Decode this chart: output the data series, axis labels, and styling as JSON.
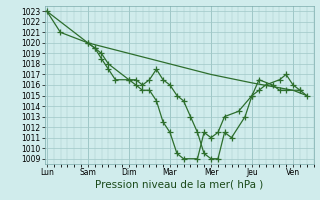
{
  "background_color": "#d0ecec",
  "grid_color": "#a0c8c8",
  "line_color": "#2d6e2d",
  "marker": "+",
  "xlabel": "Pression niveau de la mer( hPa )",
  "ylim": [
    1008.5,
    1023.5
  ],
  "yticks": [
    1009,
    1010,
    1011,
    1012,
    1013,
    1014,
    1015,
    1016,
    1017,
    1018,
    1019,
    1020,
    1021,
    1022,
    1023
  ],
  "x_labels": [
    "Lun",
    "Sam",
    "Dim",
    "Mar",
    "Mer",
    "Jeu",
    "Ven"
  ],
  "x_positions": [
    0,
    1,
    2,
    3,
    4,
    5,
    6
  ],
  "xlim": [
    -0.05,
    6.5
  ],
  "line1_x": [
    0.0,
    0.33,
    1.0,
    1.17,
    1.33,
    1.5,
    2.0,
    2.17,
    2.33,
    2.5,
    2.67,
    2.83,
    3.0,
    3.17,
    3.33,
    3.5,
    3.67,
    3.83,
    4.0,
    4.17,
    4.33,
    4.5,
    4.83,
    5.0,
    5.17,
    5.33,
    5.67,
    5.83,
    6.0,
    6.17
  ],
  "line1_y": [
    1023.0,
    1021.0,
    1020.0,
    1019.5,
    1019.0,
    1018.0,
    1016.5,
    1016.5,
    1016.0,
    1016.5,
    1017.5,
    1016.5,
    1016.0,
    1015.0,
    1014.5,
    1013.0,
    1011.5,
    1009.5,
    1009.0,
    1009.0,
    1011.5,
    1011.0,
    1013.0,
    1015.0,
    1015.5,
    1016.0,
    1016.5,
    1017.0,
    1016.0,
    1015.5
  ],
  "line2_x": [
    1.0,
    1.17,
    1.33,
    1.5,
    1.67,
    2.0,
    2.17,
    2.33,
    2.5,
    2.67,
    2.83,
    3.0,
    3.17,
    3.33,
    3.67,
    3.83,
    4.0,
    4.17,
    4.33,
    4.67,
    5.0,
    5.17,
    5.5,
    5.67,
    5.83,
    6.17,
    6.33
  ],
  "line2_y": [
    1020.0,
    1019.5,
    1018.5,
    1017.5,
    1016.5,
    1016.5,
    1016.0,
    1015.5,
    1015.5,
    1014.5,
    1012.5,
    1011.5,
    1009.5,
    1009.0,
    1009.0,
    1011.5,
    1011.0,
    1011.5,
    1013.0,
    1013.5,
    1015.0,
    1016.5,
    1016.0,
    1015.5,
    1015.5,
    1015.5,
    1015.0
  ],
  "line3_x": [
    0.0,
    1.0,
    2.0,
    3.0,
    4.0,
    5.0,
    6.0,
    6.33
  ],
  "line3_y": [
    1023.0,
    1020.0,
    1019.0,
    1018.0,
    1017.0,
    1016.2,
    1015.5,
    1015.0
  ],
  "tick_label_fontsize": 5.5,
  "xlabel_fontsize": 7.5
}
